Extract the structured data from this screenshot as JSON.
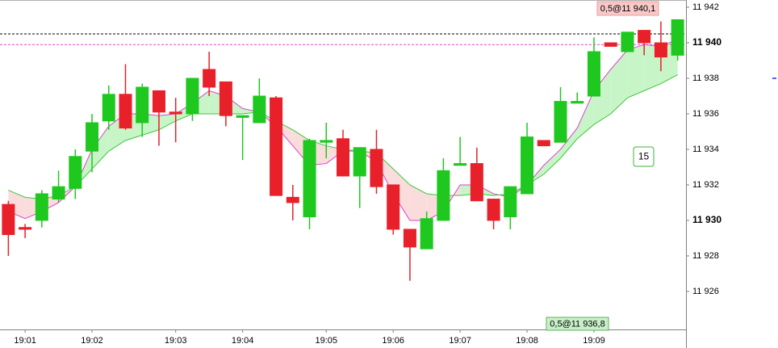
{
  "chart_data": {
    "type": "candlestick",
    "categories": [
      null,
      "19:01",
      null,
      null,
      null,
      "19:02",
      null,
      null,
      null,
      null,
      "19:03",
      null,
      null,
      null,
      "19:04",
      null,
      null,
      null,
      null,
      "19:05",
      null,
      null,
      null,
      "19:06",
      null,
      null,
      null,
      "19:07",
      null,
      null,
      null,
      "19:08",
      null,
      null,
      null,
      "19:09",
      null,
      null,
      null,
      null,
      null
    ],
    "open": [
      11930.9,
      11929.6,
      11930.0,
      11931.2,
      11931.8,
      11933.9,
      11935.6,
      11937.1,
      11935.5,
      11937.3,
      11936.1,
      11936.0,
      11938.5,
      11937.8,
      11935.8,
      11935.5,
      11936.9,
      11931.3,
      11930.2,
      11934.4,
      11934.6,
      11932.5,
      11934.0,
      11932.0,
      11929.5,
      11928.4,
      11930.0,
      11933.1,
      11933.2,
      11931.2,
      11930.2,
      11931.5,
      11934.5,
      11934.4,
      11936.6,
      11937.0,
      11940.0,
      11939.5,
      11940.7,
      11940.0,
      11939.3
    ],
    "high": [
      11931.1,
      11929.8,
      11931.7,
      11932.8,
      11934.0,
      11936.0,
      11937.6,
      11938.8,
      11937.7,
      11937.3,
      11936.9,
      11938.0,
      11939.5,
      11937.8,
      11935.9,
      11938.0,
      11937.0,
      11932.0,
      11934.6,
      11935.5,
      11935.1,
      11934.1,
      11935.1,
      11932.0,
      11929.5,
      11930.5,
      11933.5,
      11934.7,
      11934.1,
      11931.2,
      11931.9,
      11935.5,
      11934.5,
      11937.5,
      11937.2,
      11940.3,
      11940.0,
      11940.6,
      11940.7,
      11941.2,
      11941.3
    ],
    "low": [
      11928.0,
      11929.0,
      11929.6,
      11931.0,
      11931.2,
      11932.7,
      11935.1,
      11935.1,
      11934.7,
      11934.2,
      11934.4,
      11935.6,
      11937.0,
      11935.3,
      11933.4,
      11935.5,
      11931.4,
      11930.0,
      11929.5,
      11933.5,
      11932.5,
      11930.7,
      11931.5,
      11929.2,
      11926.6,
      11928.4,
      11930.0,
      11933.1,
      11931.1,
      11929.5,
      11929.5,
      11931.5,
      11934.2,
      11934.4,
      11936.6,
      11937.0,
      11939.8,
      11939.5,
      11939.3,
      11938.4,
      11939.0
    ],
    "close": [
      11929.2,
      11929.5,
      11931.5,
      11931.9,
      11933.6,
      11935.5,
      11937.1,
      11935.2,
      11937.5,
      11936.1,
      11936.0,
      11938.0,
      11937.5,
      11935.9,
      11935.9,
      11937.0,
      11931.4,
      11931.0,
      11934.5,
      11934.5,
      11932.5,
      11934.1,
      11931.9,
      11929.5,
      11928.5,
      11930.1,
      11932.8,
      11933.2,
      11931.1,
      11930.0,
      11931.9,
      11934.7,
      11934.2,
      11936.7,
      11936.7,
      11939.5,
      11939.8,
      11940.6,
      11940.0,
      11939.2,
      11941.3
    ],
    "up_color": "#1ec81e",
    "down_color": "#e8202a",
    "series": [
      {
        "color": "#e040d0",
        "values": [
          11930.5,
          11930.1,
          11930.5,
          11931.0,
          11931.9,
          11934.0,
          11935.3,
          11936.0,
          11936.0,
          11935.9,
          11936.0,
          11936.6,
          11937.3,
          11937.0,
          11936.3,
          11936.1,
          11935.3,
          11934.2,
          11933.1,
          11933.2,
          11933.9,
          11933.9,
          11933.3,
          11931.5,
          11930.0,
          11930.0,
          11930.5,
          11932.0,
          11932.0,
          11931.5,
          11931.3,
          11932.0,
          11933.1,
          11934.0,
          11935.2,
          11937.3,
          11938.5,
          11939.6,
          11939.9,
          11939.8,
          11940.2
        ]
      },
      {
        "color": "#3cc83c",
        "values": [
          11931.7,
          11931.3,
          11931.2,
          11931.4,
          11931.9,
          11932.9,
          11933.9,
          11934.5,
          11934.8,
          11935.1,
          11935.6,
          11936.0,
          11936.0,
          11936.0,
          11936.0,
          11936.1,
          11935.6,
          11935.1,
          11934.5,
          11934.2,
          11934.0,
          11933.9,
          11933.8,
          11932.9,
          11932.0,
          11931.5,
          11931.4,
          11931.4,
          11931.5,
          11931.4,
          11931.5,
          11932.0,
          11932.6,
          11933.5,
          11934.6,
          11935.4,
          11936.0,
          11936.9,
          11937.3,
          11937.7,
          11938.2
        ]
      }
    ],
    "band_up_color": "#c8f5c8",
    "band_down_color": "#fbdcdc",
    "hlines": [
      {
        "value": 11940.5,
        "color": "#000000"
      },
      {
        "value": 11939.9,
        "color": "#e040d0"
      }
    ],
    "ylim": [
      11923.86,
      11942.41
    ],
    "yticks": [
      {
        "value": 11942,
        "label": "11 942"
      },
      {
        "value": 11940,
        "label": "11 940"
      },
      {
        "value": 11938,
        "label": "11 938"
      },
      {
        "value": 11936,
        "label": "11 936"
      },
      {
        "value": 11934,
        "label": "11 934"
      },
      {
        "value": 11932,
        "label": "11 932"
      },
      {
        "value": 11930,
        "label": "11 930"
      },
      {
        "value": 11928,
        "label": "11 928"
      },
      {
        "value": 11926,
        "label": "11 926"
      }
    ],
    "annotations": [
      "0,5@11 940,1",
      "0,5@11 936,8",
      "15"
    ]
  }
}
